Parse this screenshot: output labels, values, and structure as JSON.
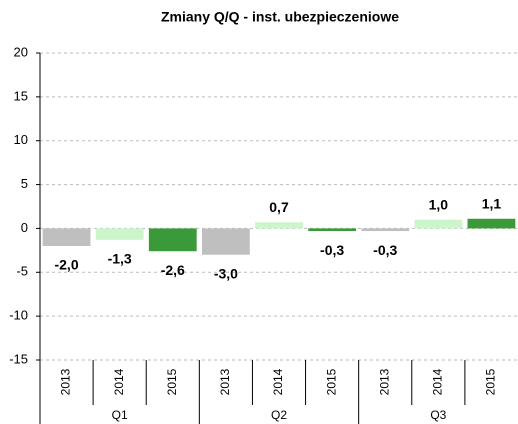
{
  "chart_data": {
    "type": "bar",
    "title": "Zmiany Q/Q - inst. ubezpieczeniowe",
    "categories": [
      "2013",
      "2014",
      "2015",
      "2013",
      "2014",
      "2015",
      "2013",
      "2014",
      "2015"
    ],
    "groups": [
      "Q1",
      "Q2",
      "Q3"
    ],
    "values": [
      -2.0,
      -1.3,
      -2.6,
      -3.0,
      0.7,
      -0.3,
      -0.3,
      1.0,
      1.1
    ],
    "value_labels": [
      "-2,0",
      "-1,3",
      "-2,6",
      "-3,0",
      "0,7",
      "-0,3",
      "-0,3",
      "1,0",
      "1,1"
    ],
    "colors": [
      "#bfbfbf",
      "#ccf5cc",
      "#3a9a3a",
      "#bfbfbf",
      "#ccf5cc",
      "#3a9a3a",
      "#bfbfbf",
      "#ccf5cc",
      "#3a9a3a"
    ],
    "ylim": [
      -15,
      20
    ],
    "yticks": [
      -15,
      -10,
      -5,
      0,
      5,
      10,
      15,
      20
    ],
    "grid": true
  }
}
